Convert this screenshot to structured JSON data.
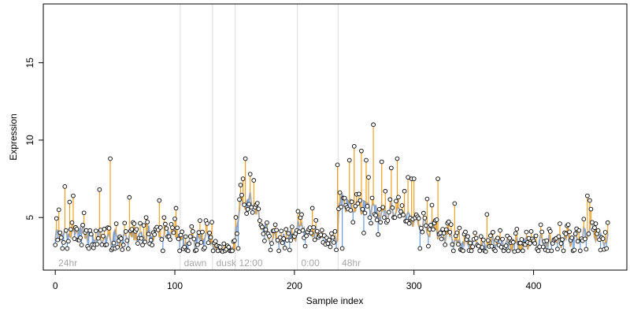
{
  "chart_data": {
    "type": "scatter",
    "title": "",
    "xlabel": "Sample index",
    "ylabel": "Expression",
    "xlim": [
      -10,
      478
    ],
    "ylim": [
      1.6,
      18.8
    ],
    "xticks": [
      0,
      100,
      200,
      300,
      400
    ],
    "yticks": [
      5,
      10,
      15
    ],
    "grid": false,
    "legend": "none",
    "colors": {
      "points_stroke": "#000000",
      "points_fill": "#ffffff",
      "above_segment": "#f0a020",
      "below_segment": "#6a9ae0",
      "fitted_line": "#a8a8a8",
      "region_divider": "#dcdcdc",
      "region_label": "#a8a8a8"
    },
    "regions": [
      {
        "label": "24hr",
        "start": 0
      },
      {
        "label": "dawn",
        "start": 105
      },
      {
        "label": "dusk",
        "start": 132
      },
      {
        "label": "12:00",
        "start": 151
      },
      {
        "label": "0:00",
        "start": 203
      },
      {
        "label": "48hr",
        "start": 237
      }
    ],
    "baseline_series": [
      {
        "x": 0,
        "y": 3.8
      },
      {
        "x": 20,
        "y": 4.1
      },
      {
        "x": 40,
        "y": 3.6
      },
      {
        "x": 60,
        "y": 3.7
      },
      {
        "x": 80,
        "y": 3.9
      },
      {
        "x": 100,
        "y": 4.0
      },
      {
        "x": 104,
        "y": 3.9
      },
      {
        "x": 105,
        "y": 3.2
      },
      {
        "x": 120,
        "y": 3.6
      },
      {
        "x": 131,
        "y": 3.8
      },
      {
        "x": 132,
        "y": 3.0
      },
      {
        "x": 150,
        "y": 2.9
      },
      {
        "x": 151,
        "y": 4.3
      },
      {
        "x": 155,
        "y": 6.0
      },
      {
        "x": 163,
        "y": 6.2
      },
      {
        "x": 170,
        "y": 5.0
      },
      {
        "x": 178,
        "y": 3.8
      },
      {
        "x": 190,
        "y": 3.5
      },
      {
        "x": 202,
        "y": 3.8
      },
      {
        "x": 203,
        "y": 4.5
      },
      {
        "x": 215,
        "y": 4.0
      },
      {
        "x": 225,
        "y": 3.5
      },
      {
        "x": 236,
        "y": 3.6
      },
      {
        "x": 237,
        "y": 6.0
      },
      {
        "x": 250,
        "y": 5.8
      },
      {
        "x": 262,
        "y": 5.8
      },
      {
        "x": 275,
        "y": 5.3
      },
      {
        "x": 290,
        "y": 5.4
      },
      {
        "x": 305,
        "y": 4.5
      },
      {
        "x": 320,
        "y": 4.1
      },
      {
        "x": 335,
        "y": 3.5
      },
      {
        "x": 350,
        "y": 3.3
      },
      {
        "x": 365,
        "y": 3.3
      },
      {
        "x": 380,
        "y": 3.2
      },
      {
        "x": 400,
        "y": 3.3
      },
      {
        "x": 420,
        "y": 3.4
      },
      {
        "x": 440,
        "y": 3.6
      },
      {
        "x": 448,
        "y": 4.3
      },
      {
        "x": 455,
        "y": 3.8
      },
      {
        "x": 462,
        "y": 3.6
      }
    ],
    "spikes": [
      {
        "x": 3,
        "y": 5.5
      },
      {
        "x": 8,
        "y": 7.0
      },
      {
        "x": 12,
        "y": 6.0
      },
      {
        "x": 15,
        "y": 6.4
      },
      {
        "x": 24,
        "y": 5.3
      },
      {
        "x": 37,
        "y": 6.8
      },
      {
        "x": 46,
        "y": 8.8
      },
      {
        "x": 62,
        "y": 6.3
      },
      {
        "x": 66,
        "y": 4.6
      },
      {
        "x": 76,
        "y": 5.0
      },
      {
        "x": 87,
        "y": 6.1
      },
      {
        "x": 91,
        "y": 5.0
      },
      {
        "x": 101,
        "y": 5.6
      },
      {
        "x": 121,
        "y": 4.8
      },
      {
        "x": 126,
        "y": 4.8
      },
      {
        "x": 131,
        "y": 4.7
      },
      {
        "x": 157,
        "y": 7.5
      },
      {
        "x": 159,
        "y": 8.8
      },
      {
        "x": 163,
        "y": 7.8
      },
      {
        "x": 166,
        "y": 7.4
      },
      {
        "x": 203,
        "y": 5.4
      },
      {
        "x": 215,
        "y": 5.6
      },
      {
        "x": 236,
        "y": 8.4
      },
      {
        "x": 246,
        "y": 8.7
      },
      {
        "x": 250,
        "y": 9.6
      },
      {
        "x": 256,
        "y": 9.3
      },
      {
        "x": 260,
        "y": 8.7
      },
      {
        "x": 262,
        "y": 7.6
      },
      {
        "x": 266,
        "y": 11.0
      },
      {
        "x": 273,
        "y": 8.6
      },
      {
        "x": 276,
        "y": 6.7
      },
      {
        "x": 281,
        "y": 8.2
      },
      {
        "x": 286,
        "y": 8.8
      },
      {
        "x": 292,
        "y": 6.7
      },
      {
        "x": 295,
        "y": 7.6
      },
      {
        "x": 298,
        "y": 7.5
      },
      {
        "x": 300,
        "y": 7.5
      },
      {
        "x": 311,
        "y": 6.2
      },
      {
        "x": 315,
        "y": 5.8
      },
      {
        "x": 320,
        "y": 7.5
      },
      {
        "x": 334,
        "y": 5.9
      },
      {
        "x": 361,
        "y": 5.2
      },
      {
        "x": 414,
        "y": 4.1
      },
      {
        "x": 422,
        "y": 4.6
      },
      {
        "x": 445,
        "y": 6.4
      },
      {
        "x": 447,
        "y": 6.1
      },
      {
        "x": 452,
        "y": 4.6
      }
    ],
    "dips": [
      {
        "x": 6,
        "y": 3.0
      },
      {
        "x": 28,
        "y": 3.0
      },
      {
        "x": 50,
        "y": 3.0
      },
      {
        "x": 110,
        "y": 2.9
      },
      {
        "x": 140,
        "y": 2.8
      },
      {
        "x": 153,
        "y": 3.0
      },
      {
        "x": 180,
        "y": 2.9
      },
      {
        "x": 196,
        "y": 2.9
      },
      {
        "x": 240,
        "y": 3.0
      },
      {
        "x": 258,
        "y": 4.0
      },
      {
        "x": 270,
        "y": 3.9
      },
      {
        "x": 305,
        "y": 3.0
      },
      {
        "x": 340,
        "y": 2.9
      },
      {
        "x": 360,
        "y": 2.8
      },
      {
        "x": 384,
        "y": 2.8
      },
      {
        "x": 410,
        "y": 2.9
      },
      {
        "x": 434,
        "y": 2.9
      },
      {
        "x": 456,
        "y": 2.9
      },
      {
        "x": 461,
        "y": 3.0
      }
    ]
  }
}
